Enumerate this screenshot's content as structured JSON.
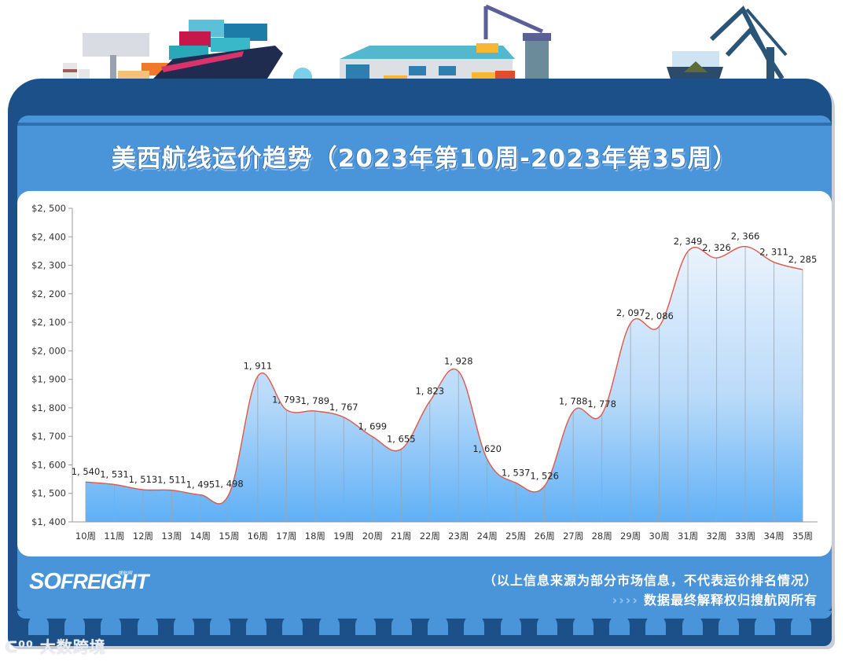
{
  "header": {
    "title": "美西航线运价趋势（2023年第10周-2023年第35周）"
  },
  "footer": {
    "logo_text_a": "SO",
    "logo_text_b": "FREIGHT",
    "logo_sub": "搜航网",
    "note_line1": "（以上信息来源为部分市场信息，不代表运价排名情况）",
    "note_arrows": "››››",
    "note_line2": "数据最终解释权归搜航网所有",
    "watermark": "大数跨境"
  },
  "colors": {
    "frame_dark_blue": "#1b5089",
    "panel_blue": "#4a94d9",
    "line_red": "#e0574a",
    "area_top": "#dbeafb",
    "area_bottom": "#5fb0f6",
    "axis_gray": "#999999"
  },
  "chart_data": {
    "type": "area",
    "title": "美西航线运价趋势（2023年第10周-2023年第35周）",
    "xlabel": "",
    "ylabel": "",
    "ylim": [
      1400,
      2500
    ],
    "yticks": [
      "$1,400",
      "$1,500",
      "$1,600",
      "$1,700",
      "$1,800",
      "$1,900",
      "$2,000",
      "$2,100",
      "$2,200",
      "$2,300",
      "$2,400",
      "$2,500"
    ],
    "ytick_values": [
      1400,
      1500,
      1600,
      1700,
      1800,
      1900,
      2000,
      2100,
      2200,
      2300,
      2400,
      2500
    ],
    "grid": false,
    "legend": "none",
    "smooth": true,
    "categories": [
      "10周",
      "11周",
      "12周",
      "13周",
      "14周",
      "15周",
      "16周",
      "17周",
      "18周",
      "19周",
      "20周",
      "21周",
      "22周",
      "23周",
      "24周",
      "25周",
      "26周",
      "27周",
      "28周",
      "29周",
      "30周",
      "31周",
      "32周",
      "33周",
      "34周",
      "35周"
    ],
    "values": [
      1540,
      1531,
      1513,
      1511,
      1495,
      1498,
      1911,
      1793,
      1789,
      1767,
      1699,
      1655,
      1823,
      1928,
      1620,
      1537,
      1526,
      1788,
      1778,
      2097,
      2086,
      2349,
      2326,
      2366,
      2311,
      2285
    ],
    "value_labels": [
      "1, 540",
      "1, 531",
      "1, 513",
      "1, 511",
      "1, 495",
      "1, 498",
      "1, 911",
      "1, 793",
      "1, 789",
      "1, 767",
      "1, 699",
      "1, 655",
      "1, 823",
      "1, 928",
      "1, 620",
      "1, 537",
      "1, 526",
      "1, 788",
      "1, 778",
      "2, 097",
      "2, 086",
      "2, 349",
      "2, 326",
      "2, 366",
      "2, 311",
      "2, 285"
    ],
    "ytick_labels_display": [
      "$1, 400",
      "$1, 500",
      "$1, 600",
      "$1, 700",
      "$1, 800",
      "$1, 900",
      "$2, 000",
      "$2, 100",
      "$2, 200",
      "$2, 300",
      "$2, 400",
      "$2, 500"
    ]
  }
}
